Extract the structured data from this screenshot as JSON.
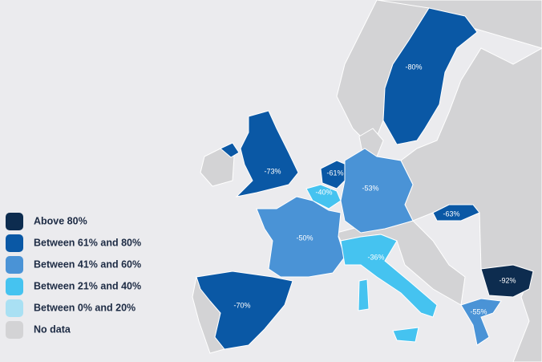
{
  "legend": [
    {
      "label": "Above 80%",
      "color": "#0d2c4f"
    },
    {
      "label": "Between 61% and 80%",
      "color": "#0a58a5"
    },
    {
      "label": "Between 41% and 60%",
      "color": "#4a93d6"
    },
    {
      "label": "Between 21% and 40%",
      "color": "#45c3f0"
    },
    {
      "label": "Between 0% and 20%",
      "color": "#a9e0f3"
    },
    {
      "label": "No data",
      "color": "#d3d3d5"
    }
  ],
  "regions": [
    {
      "label": "-80%",
      "color": "#0a58a5"
    },
    {
      "label": "-73%",
      "color": "#0a58a5"
    },
    {
      "label": "-61%",
      "color": "#0a58a5"
    },
    {
      "label": "-40%",
      "color": "#45c3f0"
    },
    {
      "label": "-53%",
      "color": "#4a93d6"
    },
    {
      "label": "-50%",
      "color": "#4a93d6"
    },
    {
      "label": "-36%",
      "color": "#45c3f0"
    },
    {
      "label": "-70%",
      "color": "#0a58a5"
    },
    {
      "label": "-63%",
      "color": "#0a58a5"
    },
    {
      "label": "-92%",
      "color": "#0d2c4f"
    },
    {
      "label": "-55%",
      "color": "#4a93d6"
    }
  ]
}
